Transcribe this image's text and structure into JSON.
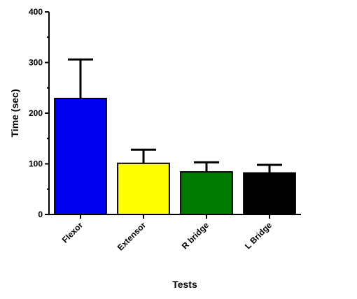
{
  "chart_data": {
    "type": "bar",
    "title": "",
    "xlabel": "Tests",
    "ylabel": "Time (sec)",
    "ylim": [
      0,
      400
    ],
    "yticks": [
      0,
      100,
      200,
      300,
      400
    ],
    "categories": [
      "Flexor",
      "Extensor",
      "R bridge",
      "L Bridge"
    ],
    "values": [
      229,
      101,
      84,
      82
    ],
    "error_upper": [
      306,
      128,
      103,
      98
    ],
    "colors": [
      "#0000ee",
      "#ffff00",
      "#007a00",
      "#000000"
    ],
    "grid": false,
    "legend": "none"
  }
}
